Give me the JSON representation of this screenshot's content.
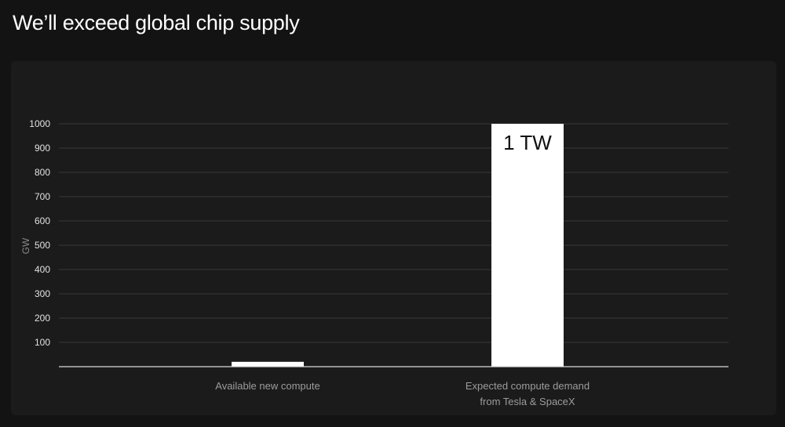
{
  "header": {
    "title": "We’ll exceed global chip supply"
  },
  "colors": {
    "background": "#131313",
    "panel": "#1b1b1b",
    "bar": "#ffffff",
    "grid": "#3a3a3a",
    "baseline": "#d9d9d9",
    "tick_text": "#e2e2e2",
    "category_text": "#9c9c9c",
    "data_label_text": "#111111"
  },
  "chart_data": {
    "type": "bar",
    "title": "",
    "xlabel": "",
    "ylabel": "GW",
    "ylim": [
      0,
      1000
    ],
    "yticks": [
      100,
      200,
      300,
      400,
      500,
      600,
      700,
      800,
      900,
      1000
    ],
    "grid": true,
    "legend": "none",
    "categories": [
      [
        "Available new compute"
      ],
      [
        "Expected compute demand",
        "from Tesla & SpaceX"
      ]
    ],
    "values": [
      20,
      1000
    ],
    "data_labels": [
      "",
      "1 TW"
    ]
  }
}
